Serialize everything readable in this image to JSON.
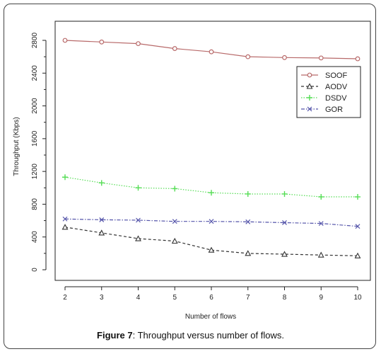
{
  "chart_data": {
    "type": "line",
    "title": "",
    "xlabel": "Number of flows",
    "ylabel": "Throughput (Kbps)",
    "x": [
      2,
      3,
      4,
      5,
      6,
      7,
      8,
      9,
      10
    ],
    "xlim": [
      2,
      10
    ],
    "ylim": [
      0,
      2800
    ],
    "yticks": [
      0,
      400,
      800,
      1200,
      1600,
      2000,
      2400,
      2800
    ],
    "grid": false,
    "legend_position": "top-right",
    "series": [
      {
        "name": "SOOF",
        "color": "#b86a6a",
        "marker": "circle",
        "dash": "solid",
        "values": [
          2800,
          2780,
          2760,
          2700,
          2660,
          2600,
          2590,
          2585,
          2575
        ]
      },
      {
        "name": "AODV",
        "color": "#333333",
        "marker": "triangle",
        "dash": "dashed",
        "values": [
          520,
          450,
          380,
          350,
          240,
          200,
          190,
          180,
          170
        ]
      },
      {
        "name": "DSDV",
        "color": "#55dd55",
        "marker": "plus",
        "dash": "dotted",
        "values": [
          1130,
          1060,
          1000,
          990,
          940,
          925,
          925,
          890,
          890
        ]
      },
      {
        "name": "GOR",
        "color": "#5555aa",
        "marker": "x",
        "dash": "dashdot",
        "values": [
          620,
          610,
          605,
          590,
          590,
          585,
          575,
          565,
          530
        ]
      }
    ]
  },
  "caption": {
    "label": "Figure 7",
    "text": ": Throughput versus number of flows."
  }
}
